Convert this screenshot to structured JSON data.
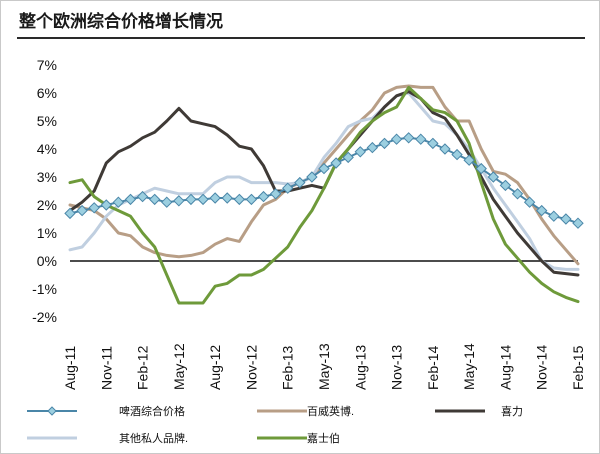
{
  "title": "整个欧洲综合价格增长情况",
  "chart_data": {
    "type": "line",
    "title": "整个欧洲综合价格增长情况",
    "xlabel": "",
    "ylabel": "",
    "ylim": [
      -2,
      7
    ],
    "y_ticks": [
      "7%",
      "6%",
      "5%",
      "4%",
      "3%",
      "2%",
      "1%",
      "0%",
      "-1%",
      "-2%"
    ],
    "x_ticks": [
      "Aug-11",
      "Nov-11",
      "Feb-12",
      "May-12",
      "Aug-12",
      "Nov-12",
      "Feb-13",
      "May-13",
      "Aug-13",
      "Nov-13",
      "Feb-14",
      "May-14",
      "Aug-14",
      "Nov-14",
      "Feb-15"
    ],
    "x_index": [
      0,
      3,
      6,
      9,
      12,
      15,
      18,
      21,
      24,
      27,
      30,
      33,
      36,
      39,
      42
    ],
    "grid": false,
    "legend_position": "bottom",
    "series": [
      {
        "name": "啤酒综合价格",
        "color": "#4a86a8",
        "marker": "diamond",
        "points": [
          [
            0,
            1.7
          ],
          [
            1,
            1.8
          ],
          [
            2,
            1.9
          ],
          [
            3,
            2.0
          ],
          [
            4,
            2.1
          ],
          [
            5,
            2.2
          ],
          [
            6,
            2.3
          ],
          [
            7,
            2.2
          ],
          [
            8,
            2.1
          ],
          [
            9,
            2.15
          ],
          [
            10,
            2.2
          ],
          [
            11,
            2.2
          ],
          [
            12,
            2.25
          ],
          [
            13,
            2.25
          ],
          [
            14,
            2.2
          ],
          [
            15,
            2.2
          ],
          [
            16,
            2.3
          ],
          [
            17,
            2.4
          ],
          [
            18,
            2.6
          ],
          [
            19,
            2.8
          ],
          [
            20,
            3.0
          ],
          [
            21,
            3.3
          ],
          [
            22,
            3.5
          ],
          [
            23,
            3.7
          ],
          [
            24,
            3.9
          ],
          [
            25,
            4.05
          ],
          [
            26,
            4.2
          ],
          [
            27,
            4.35
          ],
          [
            28,
            4.4
          ],
          [
            29,
            4.35
          ],
          [
            30,
            4.2
          ],
          [
            31,
            4.0
          ],
          [
            32,
            3.8
          ],
          [
            33,
            3.6
          ],
          [
            34,
            3.3
          ],
          [
            35,
            3.0
          ],
          [
            36,
            2.7
          ],
          [
            37,
            2.4
          ],
          [
            38,
            2.1
          ],
          [
            39,
            1.8
          ],
          [
            40,
            1.6
          ],
          [
            41,
            1.5
          ],
          [
            42,
            1.35
          ]
        ]
      },
      {
        "name": "百威英博.",
        "color": "#b89e86",
        "points": [
          [
            0,
            2.0
          ],
          [
            1,
            1.9
          ],
          [
            2,
            1.8
          ],
          [
            3,
            1.5
          ],
          [
            4,
            1.0
          ],
          [
            5,
            0.9
          ],
          [
            6,
            0.5
          ],
          [
            7,
            0.3
          ],
          [
            8,
            0.2
          ],
          [
            9,
            0.15
          ],
          [
            10,
            0.2
          ],
          [
            11,
            0.3
          ],
          [
            12,
            0.6
          ],
          [
            13,
            0.8
          ],
          [
            14,
            0.7
          ],
          [
            15,
            1.4
          ],
          [
            16,
            2.0
          ],
          [
            17,
            2.2
          ],
          [
            18,
            2.6
          ],
          [
            19,
            2.8
          ],
          [
            20,
            3.0
          ],
          [
            21,
            3.5
          ],
          [
            22,
            4.0
          ],
          [
            23,
            4.5
          ],
          [
            24,
            5.0
          ],
          [
            25,
            5.4
          ],
          [
            26,
            6.0
          ],
          [
            27,
            6.2
          ],
          [
            28,
            6.25
          ],
          [
            29,
            6.2
          ],
          [
            30,
            6.2
          ],
          [
            31,
            5.5
          ],
          [
            32,
            5.0
          ],
          [
            33,
            5.0
          ],
          [
            34,
            4.0
          ],
          [
            35,
            3.2
          ],
          [
            36,
            3.1
          ],
          [
            37,
            2.8
          ],
          [
            38,
            2.2
          ],
          [
            39,
            1.5
          ],
          [
            40,
            0.9
          ],
          [
            41,
            0.4
          ],
          [
            42,
            -0.1
          ]
        ]
      },
      {
        "name": "喜力",
        "color": "#3f3a36",
        "points": [
          [
            0,
            1.8
          ],
          [
            1,
            2.1
          ],
          [
            2,
            2.5
          ],
          [
            3,
            3.5
          ],
          [
            4,
            3.9
          ],
          [
            5,
            4.1
          ],
          [
            6,
            4.4
          ],
          [
            7,
            4.6
          ],
          [
            8,
            5.0
          ],
          [
            9,
            5.45
          ],
          [
            10,
            5.0
          ],
          [
            11,
            4.9
          ],
          [
            12,
            4.8
          ],
          [
            13,
            4.5
          ],
          [
            14,
            4.1
          ],
          [
            15,
            4.0
          ],
          [
            16,
            3.4
          ],
          [
            17,
            2.5
          ],
          [
            18,
            2.5
          ],
          [
            19,
            2.6
          ],
          [
            20,
            2.7
          ],
          [
            21,
            2.6
          ],
          [
            22,
            3.5
          ],
          [
            23,
            4.0
          ],
          [
            24,
            4.5
          ],
          [
            25,
            5.0
          ],
          [
            26,
            5.5
          ],
          [
            27,
            5.9
          ],
          [
            28,
            6.05
          ],
          [
            29,
            5.8
          ],
          [
            30,
            5.3
          ],
          [
            31,
            5.1
          ],
          [
            32,
            4.5
          ],
          [
            33,
            3.8
          ],
          [
            34,
            3.0
          ],
          [
            35,
            2.2
          ],
          [
            36,
            1.6
          ],
          [
            37,
            1.0
          ],
          [
            38,
            0.5
          ],
          [
            39,
            0.0
          ],
          [
            40,
            -0.4
          ],
          [
            41,
            -0.45
          ],
          [
            42,
            -0.5
          ]
        ]
      },
      {
        "name": "其他私人品牌.",
        "color": "#c0cfe0",
        "points": [
          [
            0,
            0.4
          ],
          [
            1,
            0.5
          ],
          [
            2,
            1.0
          ],
          [
            3,
            1.6
          ],
          [
            4,
            2.0
          ],
          [
            5,
            2.2
          ],
          [
            6,
            2.4
          ],
          [
            7,
            2.6
          ],
          [
            8,
            2.5
          ],
          [
            9,
            2.4
          ],
          [
            10,
            2.4
          ],
          [
            11,
            2.4
          ],
          [
            12,
            2.8
          ],
          [
            13,
            3.0
          ],
          [
            14,
            3.0
          ],
          [
            15,
            2.8
          ],
          [
            16,
            2.8
          ],
          [
            17,
            2.8
          ],
          [
            18,
            2.75
          ],
          [
            19,
            2.8
          ],
          [
            20,
            3.0
          ],
          [
            21,
            3.7
          ],
          [
            22,
            4.2
          ],
          [
            23,
            4.8
          ],
          [
            24,
            5.0
          ],
          [
            25,
            5.1
          ],
          [
            26,
            5.5
          ],
          [
            27,
            5.9
          ],
          [
            28,
            6.0
          ],
          [
            29,
            5.5
          ],
          [
            30,
            5.0
          ],
          [
            31,
            4.9
          ],
          [
            32,
            4.5
          ],
          [
            33,
            4.0
          ],
          [
            34,
            3.3
          ],
          [
            35,
            2.6
          ],
          [
            36,
            2.0
          ],
          [
            37,
            1.4
          ],
          [
            38,
            0.8
          ],
          [
            39,
            0.0
          ],
          [
            40,
            -0.25
          ],
          [
            41,
            -0.3
          ],
          [
            42,
            -0.3
          ]
        ]
      },
      {
        "name": "嘉士伯",
        "color": "#6e9a3a",
        "points": [
          [
            0,
            2.8
          ],
          [
            1,
            2.9
          ],
          [
            2,
            2.3
          ],
          [
            3,
            2.0
          ],
          [
            4,
            1.8
          ],
          [
            5,
            1.6
          ],
          [
            6,
            1.0
          ],
          [
            7,
            0.5
          ],
          [
            8,
            -0.5
          ],
          [
            9,
            -1.5
          ],
          [
            10,
            -1.5
          ],
          [
            11,
            -1.5
          ],
          [
            12,
            -0.9
          ],
          [
            13,
            -0.8
          ],
          [
            14,
            -0.5
          ],
          [
            15,
            -0.5
          ],
          [
            16,
            -0.3
          ],
          [
            17,
            0.1
          ],
          [
            18,
            0.5
          ],
          [
            19,
            1.2
          ],
          [
            20,
            1.8
          ],
          [
            21,
            2.6
          ],
          [
            22,
            3.5
          ],
          [
            23,
            4.0
          ],
          [
            24,
            4.6
          ],
          [
            25,
            5.0
          ],
          [
            26,
            5.3
          ],
          [
            27,
            5.5
          ],
          [
            28,
            6.2
          ],
          [
            29,
            5.8
          ],
          [
            30,
            5.4
          ],
          [
            31,
            5.3
          ],
          [
            32,
            5.0
          ],
          [
            33,
            4.2
          ],
          [
            34,
            2.8
          ],
          [
            35,
            1.5
          ],
          [
            36,
            0.6
          ],
          [
            37,
            0.1
          ],
          [
            38,
            -0.4
          ],
          [
            39,
            -0.8
          ],
          [
            40,
            -1.1
          ],
          [
            41,
            -1.3
          ],
          [
            42,
            -1.45
          ]
        ]
      }
    ]
  }
}
